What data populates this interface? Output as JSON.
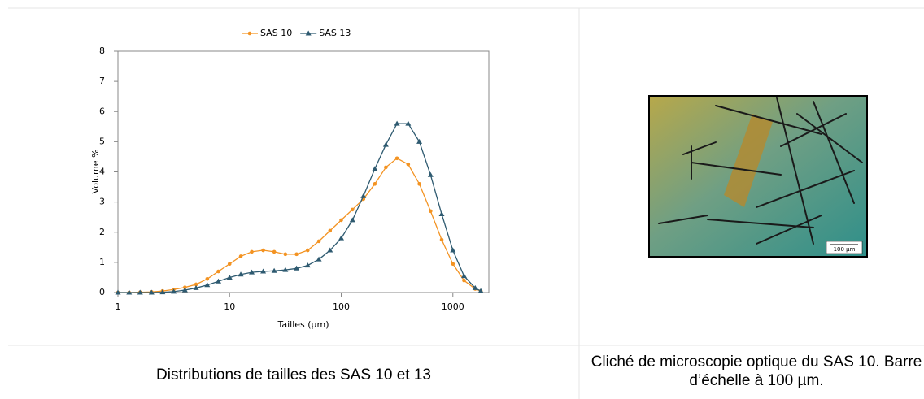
{
  "chart_data": {
    "type": "line",
    "x_label": "Tailles (µm)",
    "y_label": "Volume %",
    "x": [
      1,
      1.26,
      1.58,
      2,
      2.51,
      3.16,
      3.98,
      5.01,
      6.31,
      7.94,
      10,
      12.6,
      15.8,
      20,
      25.1,
      31.6,
      39.8,
      50.1,
      63.1,
      79.4,
      100,
      126,
      158,
      200,
      251,
      316,
      398,
      501,
      631,
      794,
      1000,
      1259,
      1585,
      1778
    ],
    "series": [
      {
        "name": "SAS 10",
        "color": "#f39322",
        "marker": "circle",
        "values": [
          0,
          0,
          0.01,
          0.02,
          0.05,
          0.1,
          0.17,
          0.27,
          0.45,
          0.7,
          0.95,
          1.2,
          1.35,
          1.4,
          1.35,
          1.27,
          1.27,
          1.4,
          1.7,
          2.05,
          2.4,
          2.75,
          3.1,
          3.6,
          4.15,
          4.45,
          4.25,
          3.6,
          2.7,
          1.75,
          0.95,
          0.4,
          0.12,
          0.05
        ]
      },
      {
        "name": "SAS 13",
        "color": "#2e5a70",
        "marker": "triangle",
        "values": [
          0,
          0,
          0,
          0,
          0.01,
          0.03,
          0.08,
          0.15,
          0.25,
          0.37,
          0.5,
          0.6,
          0.67,
          0.7,
          0.72,
          0.75,
          0.8,
          0.9,
          1.1,
          1.4,
          1.8,
          2.4,
          3.2,
          4.1,
          4.9,
          5.6,
          5.6,
          5.0,
          3.9,
          2.6,
          1.4,
          0.55,
          0.15,
          0.05
        ]
      }
    ],
    "xscale": "log",
    "xlim": [
      1,
      2100
    ],
    "xticks": [
      1,
      10,
      100,
      1000
    ],
    "ylim": [
      0,
      8
    ],
    "yticks": [
      0,
      1,
      2,
      3,
      4,
      5,
      6,
      7,
      8
    ],
    "grid": false,
    "legend": "top"
  },
  "image": {
    "scale_bar": "100 µm"
  },
  "captions": {
    "left": "Distributions de tailles des SAS 10 et 13",
    "right": "Cliché de microscopie optique du SAS 10. Barre d’échelle à 100 µm."
  }
}
